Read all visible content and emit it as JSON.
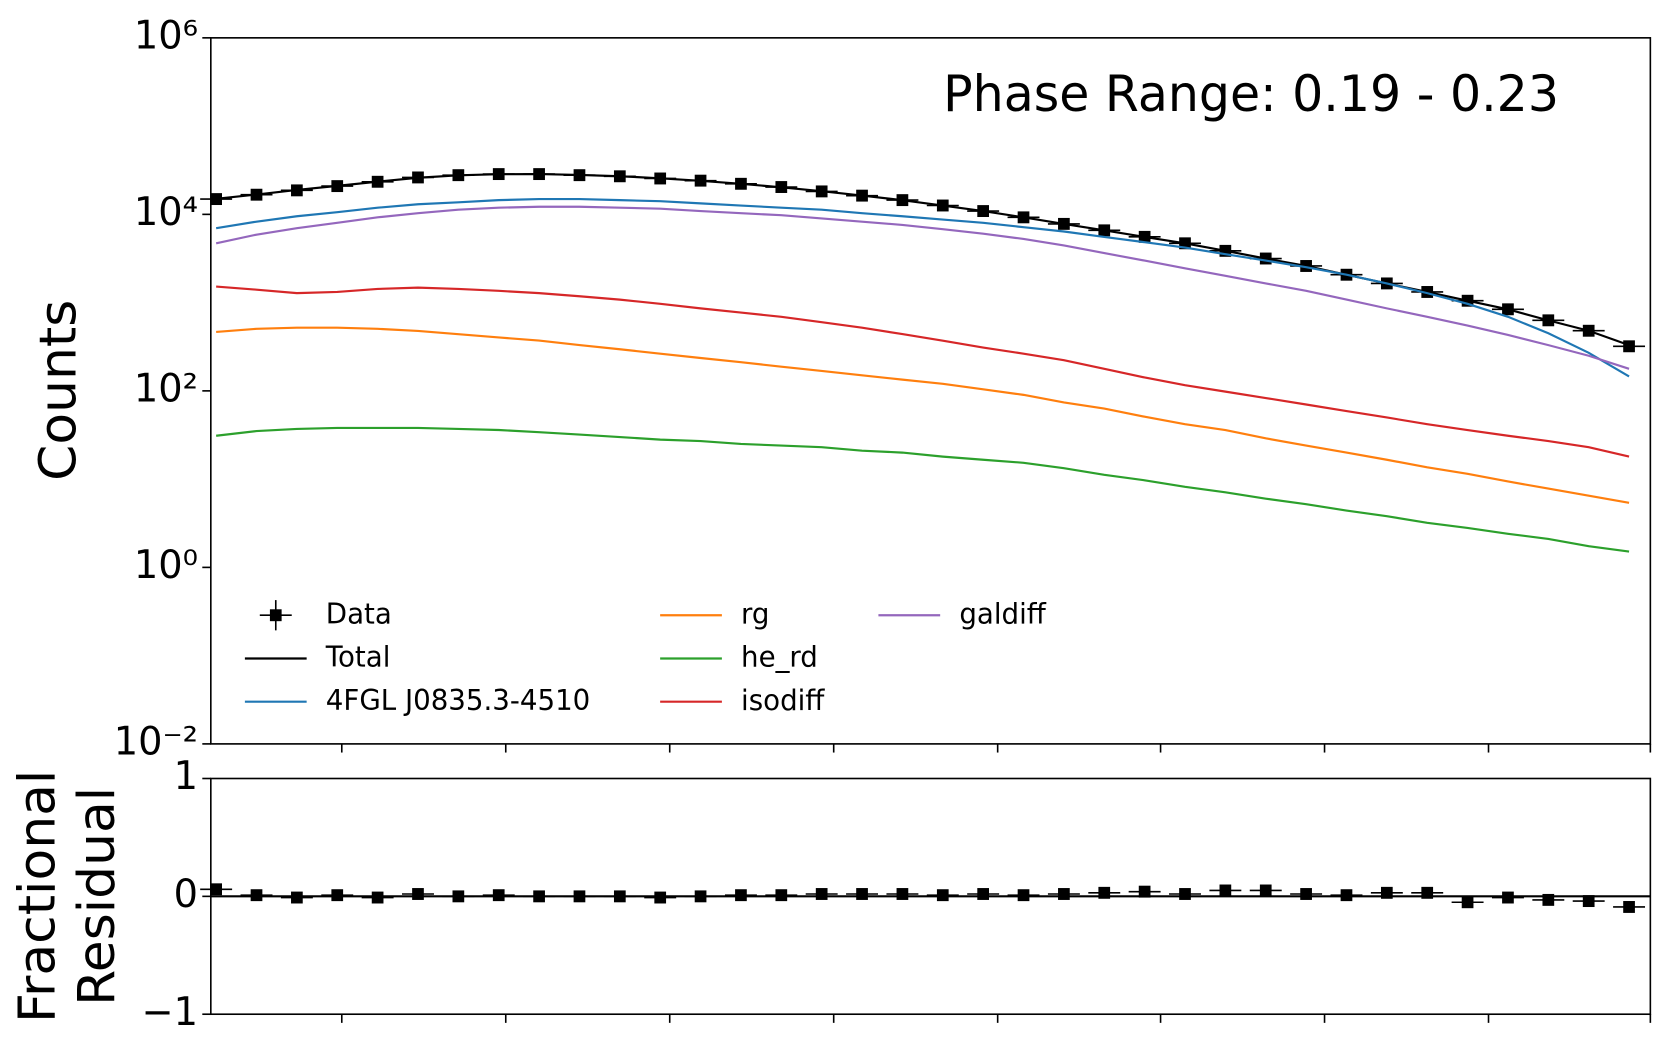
{
  "chart_data": [
    {
      "type": "line",
      "title": "Phase Range: 0.19 - 0.23",
      "ylabel": "Counts",
      "log_y": true,
      "grid": false,
      "legend": "lower left",
      "legend_columns": 3,
      "ylim": [
        0.01,
        1000000
      ],
      "yticks": [
        {
          "value": 0.01,
          "label": "10⁻²"
        },
        {
          "value": 1,
          "label": "10⁰"
        },
        {
          "value": 100,
          "label": "10²"
        },
        {
          "value": 10000,
          "label": "10⁴"
        },
        {
          "value": 1000000,
          "label": "10⁶"
        }
      ],
      "categories": [
        null,
        null,
        null,
        null,
        null,
        null,
        null,
        null,
        null,
        null,
        null,
        null,
        null,
        null,
        null,
        null,
        null,
        null,
        null,
        null,
        null,
        null,
        null,
        null,
        null,
        null,
        null,
        null,
        null,
        null,
        null,
        null,
        null,
        null,
        null,
        null
      ],
      "series": [
        {
          "name": "Data",
          "color": "#000000",
          "marker": "square",
          "values": [
            14900,
            16700,
            18700,
            20900,
            23400,
            26200,
            27800,
            28600,
            28600,
            27800,
            27000,
            25500,
            24100,
            22200,
            20400,
            18200,
            16300,
            14500,
            12600,
            10900,
            9250,
            7800,
            6590,
            5560,
            4700,
            3860,
            3160,
            2600,
            2070,
            1650,
            1320,
            1050,
            840,
            630,
            480,
            320
          ]
        },
        {
          "name": "Total",
          "color": "#000000",
          "values": [
            15000,
            16800,
            18900,
            21000,
            23500,
            26000,
            27700,
            28500,
            28600,
            28000,
            27000,
            25600,
            24000,
            22200,
            20300,
            18300,
            16300,
            14500,
            12600,
            10900,
            9250,
            7800,
            6590,
            5560,
            4700,
            3860,
            3160,
            2600,
            2070,
            1650,
            1320,
            1050,
            840,
            630,
            480,
            330
          ]
        },
        {
          "name": "4FGL J0835.3-4510",
          "color": "#1f77b4",
          "values": [
            6970,
            8260,
            9510,
            10600,
            11900,
            13000,
            13700,
            14500,
            14900,
            14900,
            14500,
            14100,
            13300,
            12600,
            11900,
            11300,
            10300,
            9510,
            8730,
            8020,
            7160,
            6400,
            5560,
            4830,
            4200,
            3540,
            2990,
            2520,
            2070,
            1650,
            1280,
            970,
            690,
            450,
            270,
            146
          ]
        },
        {
          "name": "rg",
          "color": "#ff7f0e",
          "values": [
            465,
            505,
            520,
            520,
            505,
            477,
            438,
            403,
            371,
            331,
            296,
            264,
            236,
            211,
            188,
            168,
            150,
            134,
            120,
            104,
            90,
            74,
            63,
            51,
            42,
            36,
            29,
            24,
            20,
            16.6,
            13.6,
            11.5,
            9.4,
            7.8,
            6.5,
            5.4
          ]
        },
        {
          "name": "he_rd",
          "color": "#2ca02c",
          "values": [
            31,
            35,
            37,
            38,
            38,
            38,
            37,
            36,
            34,
            32,
            30,
            28,
            27,
            25,
            24,
            23,
            21,
            20,
            18,
            16.6,
            15.3,
            13.3,
            11.2,
            9.7,
            8.2,
            7.1,
            6.0,
            5.2,
            4.4,
            3.8,
            3.2,
            2.8,
            2.4,
            2.1,
            1.74,
            1.51
          ]
        },
        {
          "name": "isodiff",
          "color": "#d62728",
          "values": [
            1520,
            1400,
            1280,
            1320,
            1430,
            1480,
            1430,
            1360,
            1280,
            1180,
            1080,
            970,
            860,
            770,
            690,
            600,
            520,
            440,
            370,
            310,
            264,
            223,
            178,
            142,
            116,
            98,
            83,
            70,
            59,
            50,
            42,
            36,
            31,
            27,
            23,
            18
          ]
        },
        {
          "name": "galdiff",
          "color": "#9467bd",
          "values": [
            4700,
            5890,
            6970,
            8020,
            9250,
            10300,
            11300,
            11900,
            12200,
            12200,
            11900,
            11600,
            10900,
            10300,
            9780,
            8990,
            8260,
            7590,
            6780,
            6050,
            5260,
            4440,
            3640,
            2990,
            2450,
            2010,
            1650,
            1360,
            1080,
            860,
            690,
            550,
            430,
            330,
            250,
            178
          ]
        }
      ]
    },
    {
      "type": "scatter",
      "ylabel": [
        "Fractional",
        "Residual"
      ],
      "grid": false,
      "ylim": [
        -1,
        1
      ],
      "yticks": [
        {
          "value": -1,
          "label": "−1"
        },
        0,
        1
      ],
      "categories": [
        null,
        null,
        null,
        null,
        null,
        null,
        null,
        null,
        null,
        null,
        null,
        null,
        null,
        null,
        null,
        null,
        null,
        null,
        null,
        null,
        null,
        null,
        null,
        null,
        null,
        null,
        null,
        null,
        null,
        null,
        null,
        null,
        null,
        null,
        null,
        null
      ],
      "color": "#000000",
      "values": [
        0.06,
        0.01,
        -0.01,
        0.01,
        -0.01,
        0.02,
        0,
        0.01,
        0,
        0,
        0,
        -0.01,
        0,
        0.01,
        0.01,
        0.02,
        0.02,
        0.02,
        0.01,
        0.02,
        0.01,
        0.02,
        0.03,
        0.04,
        0.02,
        0.05,
        0.05,
        0.02,
        0.01,
        0.03,
        0.03,
        -0.05,
        -0.01,
        -0.03,
        -0.04,
        -0.09
      ]
    }
  ]
}
